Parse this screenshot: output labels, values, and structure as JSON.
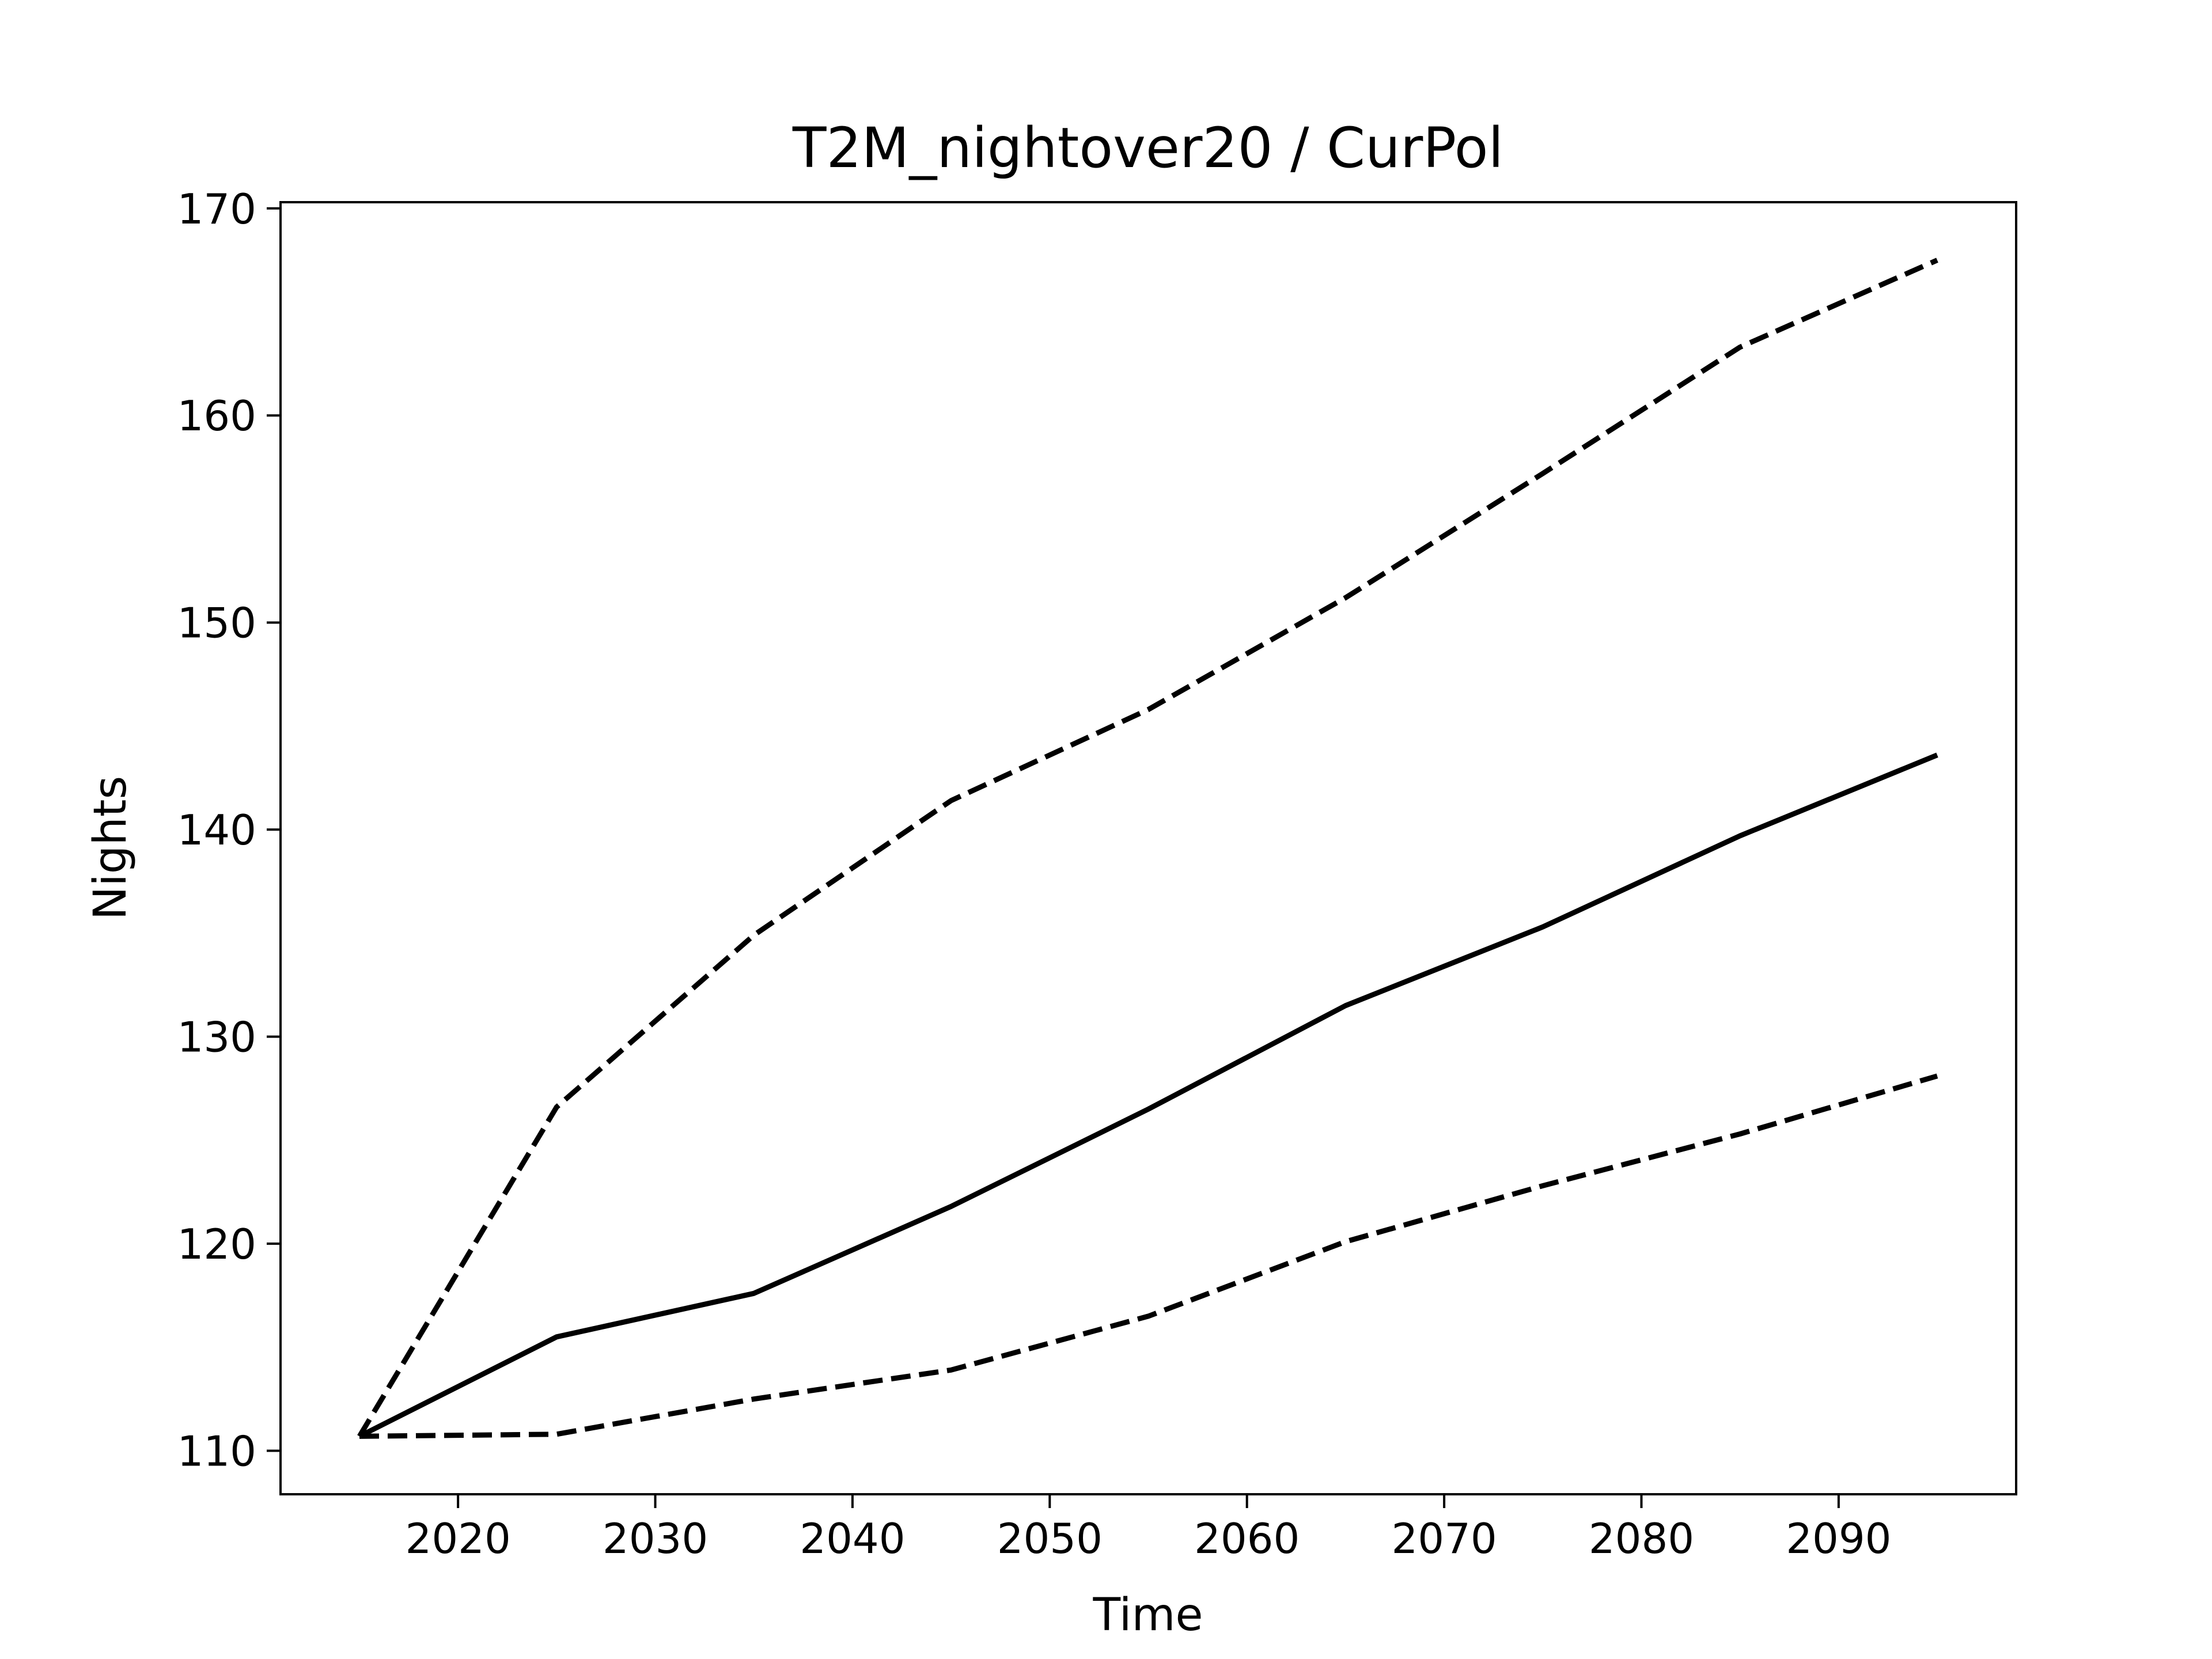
{
  "chart_data": {
    "type": "line",
    "title": "T2M_nightover20 / CurPol",
    "xlabel": "Time",
    "ylabel": "Nights",
    "xlim": [
      2011,
      2099
    ],
    "ylim": [
      107.9,
      170.3
    ],
    "xticks": [
      2020,
      2030,
      2040,
      2050,
      2060,
      2070,
      2080,
      2090
    ],
    "yticks": [
      110,
      120,
      130,
      140,
      150,
      160,
      170
    ],
    "grid": false,
    "x": [
      2015,
      2025,
      2035,
      2045,
      2055,
      2065,
      2075,
      2085,
      2095
    ],
    "series": [
      {
        "style": "solid",
        "color": "#000000",
        "values": [
          110.7,
          115.5,
          117.6,
          121.8,
          126.5,
          131.5,
          135.3,
          139.7,
          143.6
        ]
      },
      {
        "style": "dashed",
        "color": "#000000",
        "values": [
          110.7,
          126.6,
          134.9,
          141.4,
          145.8,
          151.2,
          157.2,
          163.3,
          167.5
        ]
      },
      {
        "style": "dashed",
        "color": "#000000",
        "values": [
          110.7,
          110.8,
          112.5,
          113.9,
          116.5,
          120.1,
          122.8,
          125.3,
          128.1
        ]
      }
    ]
  }
}
